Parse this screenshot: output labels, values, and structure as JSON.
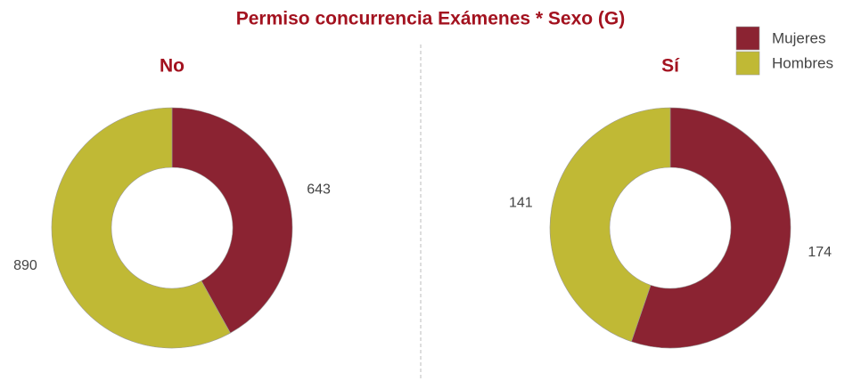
{
  "title": "Permiso concurrencia Exámenes * Sexo (G)",
  "chart_data": [
    {
      "type": "donut",
      "title": "No",
      "categories": [
        "Mujeres",
        "Hombres"
      ],
      "values": [
        643,
        890
      ],
      "colors": [
        "#8b2332",
        "#c0b935"
      ]
    },
    {
      "type": "donut",
      "title": "Sí",
      "categories": [
        "Mujeres",
        "Hombres"
      ],
      "values": [
        174,
        141
      ],
      "colors": [
        "#8b2332",
        "#c0b935"
      ]
    }
  ]
}
